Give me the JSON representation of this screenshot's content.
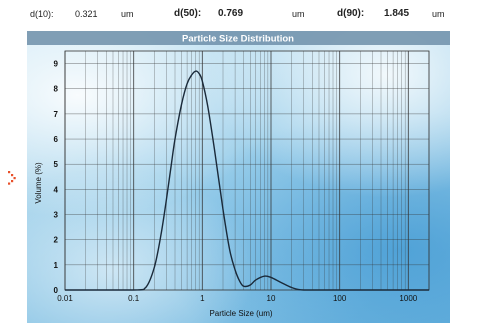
{
  "stats": {
    "d10_label": "d(10):",
    "d10_value": "0.321",
    "d10_unit": "um",
    "d50_label": "d(50):",
    "d50_value": "0.769",
    "d50_unit": "um",
    "d90_label": "d(90):",
    "d90_value": "1.845",
    "d90_unit": "um"
  },
  "chart_data": {
    "type": "line",
    "title": "Particle Size Distribution",
    "xlabel": "Particle Size (um)",
    "ylabel": "Volume (%)",
    "xscale": "log",
    "xlim": [
      0.01,
      2000
    ],
    "ylim": [
      0,
      9.5
    ],
    "xticks": [
      0.01,
      0.1,
      1,
      10,
      100,
      1000
    ],
    "xtick_labels": [
      "0.01",
      "0.1",
      "1",
      "10",
      "100",
      "1000"
    ],
    "yticks": [
      0,
      1,
      2,
      3,
      4,
      5,
      6,
      7,
      8,
      9
    ],
    "ytick_labels": [
      "0",
      "1",
      "2",
      "3",
      "4",
      "5",
      "6",
      "7",
      "8",
      "9"
    ],
    "grid": true,
    "series": [
      {
        "x": [
          0.01,
          0.1,
          0.15,
          0.2,
          0.25,
          0.3,
          0.35,
          0.4,
          0.5,
          0.6,
          0.7,
          0.8,
          0.9,
          1.0,
          1.2,
          1.5,
          2.0,
          2.5,
          3.0,
          3.5,
          4.0,
          5.0,
          6.0,
          8.0,
          10.0,
          14.0,
          20.0,
          30.0,
          100.0,
          1000.0,
          2000.0
        ],
        "y": [
          0,
          0,
          0.1,
          0.9,
          2.2,
          3.6,
          4.9,
          6.0,
          7.4,
          8.2,
          8.55,
          8.7,
          8.6,
          8.3,
          7.3,
          5.6,
          3.2,
          1.6,
          0.8,
          0.35,
          0.15,
          0.2,
          0.4,
          0.55,
          0.5,
          0.3,
          0.1,
          0,
          0,
          0,
          0
        ]
      }
    ]
  },
  "colors": {
    "line": "#1a2a3a",
    "grid": "#333333",
    "axis_text": "#111111",
    "title_text": "#ffffff",
    "side_mark": "#e8502a"
  },
  "icons": {
    "side_mark": "dotted-diamond-icon"
  }
}
